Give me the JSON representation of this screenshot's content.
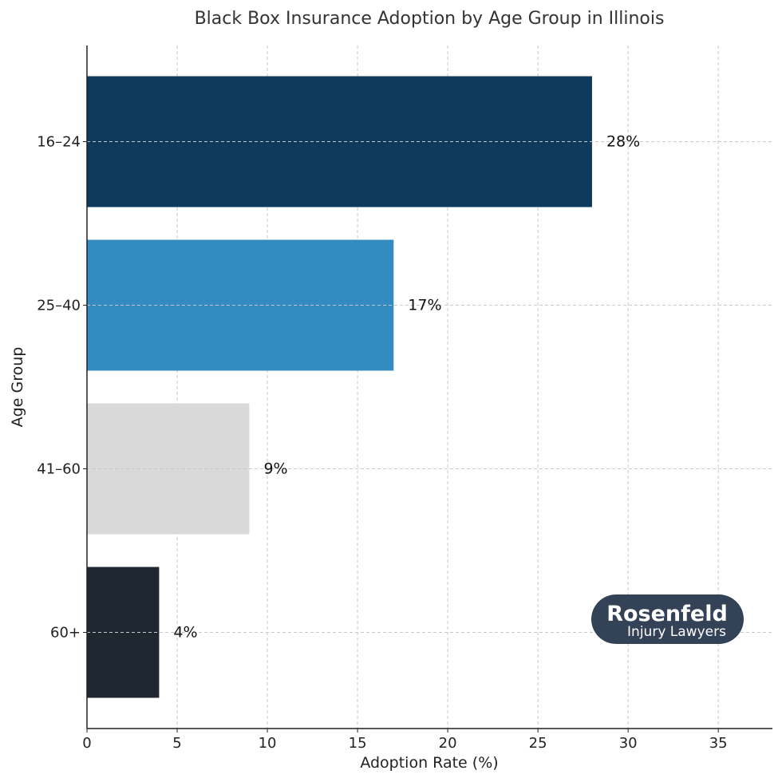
{
  "chart_data": {
    "type": "bar",
    "orientation": "horizontal",
    "title": "Black Box Insurance Adoption by Age Group in Illinois",
    "xlabel": "Adoption Rate (%)",
    "ylabel": "Age Group",
    "categories": [
      "16–24",
      "25–40",
      "41–60",
      "60+"
    ],
    "values": [
      28,
      17,
      9,
      4
    ],
    "value_labels": [
      "28%",
      "17%",
      "9%",
      "4%"
    ],
    "bar_colors": [
      "#0d3a5c",
      "#348bc2",
      "#d9d9d9",
      "#1f2730"
    ],
    "xlim": [
      0,
      38
    ],
    "xticks": [
      0,
      5,
      10,
      15,
      20,
      25,
      30,
      35
    ],
    "xtick_labels": [
      "0",
      "5",
      "10",
      "15",
      "20",
      "25",
      "30",
      "35"
    ],
    "grid": true
  },
  "logo": {
    "main": "Rosenfeld",
    "sub": "Injury Lawyers",
    "color": "#344258"
  }
}
